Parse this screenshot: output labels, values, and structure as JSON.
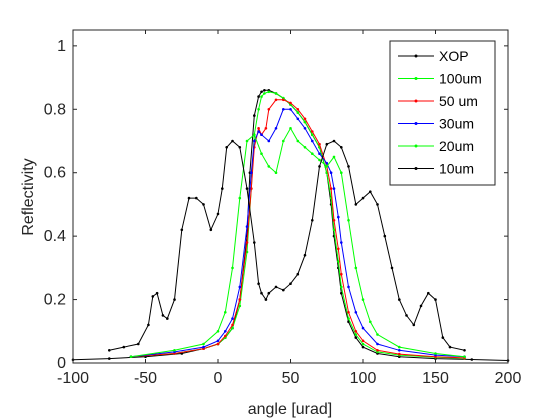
{
  "chart_data": {
    "type": "line",
    "title": "",
    "xlabel": "angle [urad]",
    "ylabel": "Reflectivity",
    "xlim": [
      -100,
      200
    ],
    "ylim": [
      0,
      1.05
    ],
    "xticks": [
      -100,
      -50,
      0,
      50,
      100,
      150,
      200
    ],
    "yticks": [
      0,
      0.2,
      0.4,
      0.6,
      0.8,
      1
    ],
    "ytick_labels": [
      "0",
      "0.2",
      "0.4",
      "0.6",
      "0.8",
      "1"
    ],
    "grid": false,
    "legend_position": "top-right",
    "series": [
      {
        "name": "XOP",
        "color": "#000000",
        "x": [
          -100,
          -75,
          -50,
          -25,
          -10,
          0,
          5,
          10,
          15,
          20,
          22,
          25,
          28,
          30,
          32,
          35,
          40,
          45,
          50,
          55,
          60,
          65,
          70,
          75,
          78,
          80,
          83,
          85,
          90,
          95,
          100,
          110,
          125,
          150,
          175,
          200
        ],
        "y": [
          0.01,
          0.014,
          0.02,
          0.03,
          0.045,
          0.06,
          0.08,
          0.11,
          0.2,
          0.4,
          0.6,
          0.78,
          0.84,
          0.855,
          0.86,
          0.86,
          0.85,
          0.835,
          0.815,
          0.79,
          0.76,
          0.72,
          0.68,
          0.6,
          0.5,
          0.4,
          0.3,
          0.22,
          0.13,
          0.08,
          0.05,
          0.03,
          0.02,
          0.014,
          0.011,
          0.008
        ]
      },
      {
        "name": "100um",
        "color": "#00ff00",
        "x": [
          -60,
          -30,
          -10,
          0,
          5,
          10,
          15,
          20,
          23,
          25,
          28,
          30,
          32,
          35,
          40,
          45,
          50,
          55,
          60,
          65,
          70,
          75,
          78,
          80,
          83,
          85,
          90,
          95,
          100,
          110,
          125,
          150,
          170
        ],
        "y": [
          0.02,
          0.03,
          0.045,
          0.06,
          0.08,
          0.11,
          0.18,
          0.35,
          0.55,
          0.72,
          0.8,
          0.84,
          0.85,
          0.855,
          0.85,
          0.835,
          0.815,
          0.79,
          0.76,
          0.72,
          0.68,
          0.6,
          0.52,
          0.42,
          0.32,
          0.24,
          0.14,
          0.09,
          0.06,
          0.035,
          0.025,
          0.018,
          0.015
        ]
      },
      {
        "name": "50 um",
        "color": "#ff0000",
        "x": [
          -60,
          -30,
          -10,
          0,
          5,
          10,
          15,
          20,
          23,
          25,
          28,
          30,
          33,
          35,
          40,
          45,
          50,
          55,
          60,
          65,
          70,
          75,
          78,
          80,
          83,
          85,
          90,
          95,
          100,
          110,
          125,
          150,
          170
        ],
        "y": [
          0.02,
          0.03,
          0.045,
          0.06,
          0.085,
          0.12,
          0.2,
          0.38,
          0.55,
          0.68,
          0.74,
          0.72,
          0.74,
          0.8,
          0.83,
          0.83,
          0.82,
          0.8,
          0.77,
          0.73,
          0.69,
          0.62,
          0.55,
          0.45,
          0.36,
          0.28,
          0.16,
          0.1,
          0.07,
          0.04,
          0.028,
          0.02,
          0.016
        ]
      },
      {
        "name": "30um",
        "color": "#0000ff",
        "x": [
          -60,
          -30,
          -10,
          0,
          5,
          10,
          15,
          20,
          23,
          25,
          28,
          30,
          35,
          40,
          45,
          50,
          55,
          60,
          65,
          70,
          75,
          78,
          80,
          83,
          85,
          90,
          95,
          100,
          110,
          125,
          150,
          170
        ],
        "y": [
          0.02,
          0.035,
          0.05,
          0.07,
          0.1,
          0.14,
          0.24,
          0.43,
          0.6,
          0.7,
          0.73,
          0.72,
          0.7,
          0.74,
          0.8,
          0.8,
          0.77,
          0.74,
          0.7,
          0.66,
          0.63,
          0.6,
          0.55,
          0.46,
          0.38,
          0.24,
          0.16,
          0.11,
          0.06,
          0.04,
          0.025,
          0.02
        ]
      },
      {
        "name": "20um",
        "color": "#00ff00",
        "x": [
          -60,
          -30,
          -10,
          0,
          5,
          10,
          15,
          20,
          25,
          30,
          35,
          40,
          45,
          50,
          55,
          60,
          65,
          70,
          75,
          80,
          85,
          90,
          95,
          100,
          105,
          110,
          125,
          150,
          170
        ],
        "y": [
          0.02,
          0.04,
          0.06,
          0.1,
          0.16,
          0.3,
          0.52,
          0.7,
          0.72,
          0.66,
          0.62,
          0.6,
          0.7,
          0.74,
          0.7,
          0.68,
          0.66,
          0.64,
          0.62,
          0.65,
          0.6,
          0.45,
          0.3,
          0.2,
          0.13,
          0.09,
          0.05,
          0.03,
          0.02
        ]
      },
      {
        "name": "10um",
        "color": "#000000",
        "x": [
          -75,
          -65,
          -55,
          -48,
          -45,
          -42,
          -38,
          -35,
          -30,
          -25,
          -20,
          -15,
          -10,
          -5,
          0,
          3,
          6,
          10,
          15,
          20,
          25,
          28,
          30,
          33,
          35,
          40,
          45,
          50,
          55,
          60,
          65,
          70,
          75,
          80,
          85,
          90,
          95,
          100,
          105,
          110,
          115,
          120,
          125,
          130,
          135,
          140,
          145,
          150,
          155,
          160,
          170
        ],
        "y": [
          0.04,
          0.05,
          0.06,
          0.12,
          0.21,
          0.22,
          0.15,
          0.14,
          0.2,
          0.42,
          0.52,
          0.52,
          0.5,
          0.42,
          0.47,
          0.55,
          0.68,
          0.7,
          0.68,
          0.55,
          0.38,
          0.25,
          0.22,
          0.2,
          0.22,
          0.24,
          0.23,
          0.25,
          0.28,
          0.34,
          0.45,
          0.62,
          0.69,
          0.7,
          0.68,
          0.62,
          0.5,
          0.52,
          0.54,
          0.5,
          0.4,
          0.3,
          0.2,
          0.15,
          0.12,
          0.18,
          0.22,
          0.2,
          0.08,
          0.05,
          0.04
        ]
      }
    ]
  }
}
